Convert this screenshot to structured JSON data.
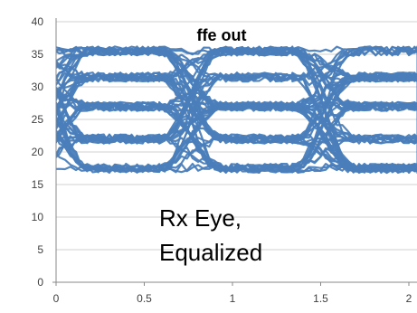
{
  "chart_data": {
    "type": "line",
    "title": "ffe out",
    "annotation": [
      "Rx Eye,",
      "Equalized"
    ],
    "xlabel": "",
    "ylabel": "",
    "xlim": [
      0,
      2
    ],
    "ylim": [
      0,
      40
    ],
    "x_ticks": [
      "0",
      "0.5",
      "1",
      "1.5",
      "2"
    ],
    "y_ticks": [
      "0",
      "5",
      "10",
      "15",
      "20",
      "25",
      "30",
      "35",
      "40"
    ],
    "grid": "horizontal",
    "legend": "none",
    "series_color": "#4a7ebb",
    "description_levels": [
      17.5,
      22,
      27,
      31.5,
      35.5
    ],
    "eye_centers_x": [
      0.2,
      0.97,
      1.85
    ],
    "eye_crossings_x": [
      0.6,
      1.35
    ]
  }
}
